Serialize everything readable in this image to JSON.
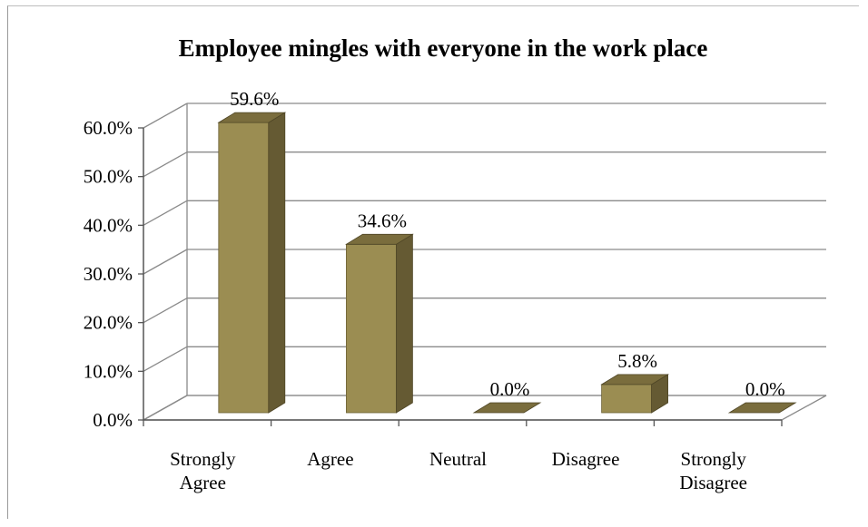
{
  "chart_data": {
    "type": "bar",
    "title": "Employee mingles with everyone in the work place",
    "xlabel": "",
    "ylabel": "",
    "categories": [
      [
        "Strongly",
        "Agree"
      ],
      [
        "Agree"
      ],
      [
        "Neutral"
      ],
      [
        "Disagree"
      ],
      [
        "Strongly",
        "Disagree"
      ]
    ],
    "values": [
      59.6,
      34.6,
      0.0,
      5.8,
      0.0
    ],
    "value_labels": [
      "59.6%",
      "34.6%",
      "0.0%",
      "5.8%",
      "0.0%"
    ],
    "y_ticks": [
      "0.0%",
      "10.0%",
      "20.0%",
      "30.0%",
      "40.0%",
      "50.0%",
      "60.0%"
    ],
    "ylim": [
      0,
      60
    ],
    "grid": true,
    "legend": "none",
    "style": "3d-column",
    "colors": {
      "bar_front": "#9b8d52",
      "bar_side": "#655a33",
      "bar_top": "#7a6d3d",
      "grid": "#8a8a8a",
      "axis": "#555555"
    }
  }
}
